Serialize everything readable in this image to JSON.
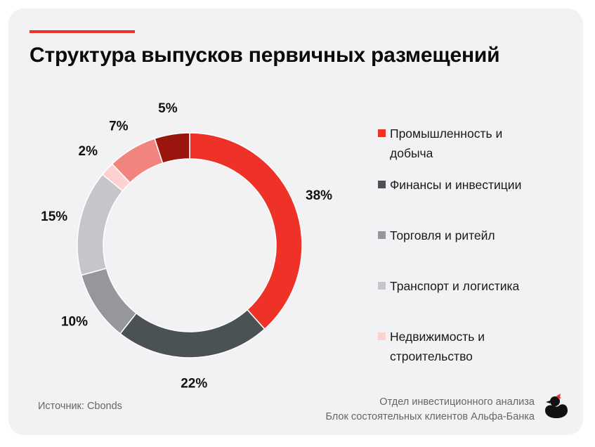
{
  "title": "Структура выпусков первичных размещений",
  "source": "Источник: Cbonds",
  "credits": {
    "line1": "Отдел инвестиционного анализа",
    "line2": "Блок состоятельных клиентов Альфа-Банка"
  },
  "logo_icon": "duck-logo-icon",
  "colors": {
    "accent": "#e8322a",
    "card_bg": "#f2f2f4"
  },
  "chart_data": {
    "type": "pie",
    "donut": true,
    "title": "Структура выпусков первичных размещений",
    "categories": [
      "Промышленность и добыча",
      "Финансы и инвестиции",
      "Торговля и ритейл",
      "Транспорт и логистика",
      "Недвижимость и строительство",
      "",
      ""
    ],
    "values": [
      38,
      22,
      10,
      15,
      2,
      7,
      5
    ],
    "value_labels": [
      "38%",
      "22%",
      "10%",
      "15%",
      "2%",
      "7%",
      "5%"
    ],
    "colors": [
      "#ee3228",
      "#4b5253",
      "#97979b",
      "#c5c5ca",
      "#fcd1d0",
      "#f2847f",
      "#9b150f"
    ],
    "legend_placement": "right",
    "legend": [
      {
        "label": "Промышленность и добыча",
        "color": "#ee3228"
      },
      {
        "label": "Финансы и инвестиции",
        "color": "#4b5253"
      },
      {
        "label": "Торговля и ритейл",
        "color": "#97979b"
      },
      {
        "label": "Транспорт и логистика",
        "color": "#c5c5ca"
      },
      {
        "label": "Недвижимость и строительство",
        "color": "#fcd1d0"
      }
    ]
  }
}
